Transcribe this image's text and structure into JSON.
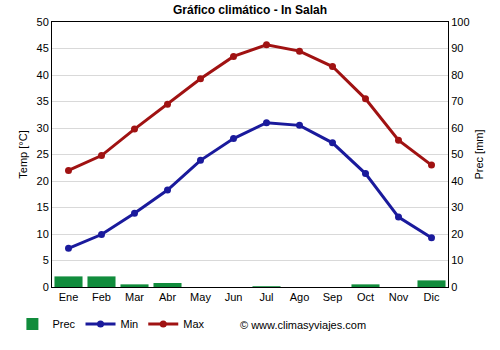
{
  "chart_data": {
    "type": "combo",
    "title": "Gráfico climático - In Salah",
    "y_label": "Temp [°C]",
    "y2_label": "Prec [mm]",
    "categories": [
      "Ene",
      "Feb",
      "Mar",
      "Abr",
      "May",
      "Jun",
      "Jul",
      "Ago",
      "Sep",
      "Oct",
      "Nov",
      "Dic"
    ],
    "series": [
      {
        "name": "Prec",
        "type": "bar",
        "axis": "y2",
        "color": "#118c3c",
        "values": [
          4,
          4,
          1,
          1.5,
          0,
          0,
          0.3,
          0,
          0,
          1,
          0,
          2.5
        ]
      },
      {
        "name": "Min",
        "type": "line",
        "marker": "circle",
        "color": "#1a1a9c",
        "values": [
          7.3,
          9.9,
          13.9,
          18.3,
          23.9,
          28,
          31,
          30.5,
          27.2,
          21.4,
          13.2,
          9.3
        ]
      },
      {
        "name": "Max",
        "type": "line",
        "marker": "circle",
        "color": "#a01212",
        "values": [
          22,
          24.8,
          29.8,
          34.5,
          39.3,
          43.5,
          45.7,
          44.5,
          41.6,
          35.5,
          27.7,
          23
        ]
      }
    ],
    "ylim": [
      0,
      50
    ],
    "yticks": [
      0,
      5,
      10,
      15,
      20,
      25,
      30,
      35,
      40,
      45,
      50
    ],
    "y2lim": [
      0,
      100
    ],
    "y2ticks": [
      0,
      10,
      20,
      30,
      40,
      50,
      60,
      70,
      80,
      90,
      100
    ],
    "grid": true,
    "legend": "bottom-left",
    "annotations": [
      {
        "text": "© www.climasyviajes.com"
      }
    ]
  }
}
